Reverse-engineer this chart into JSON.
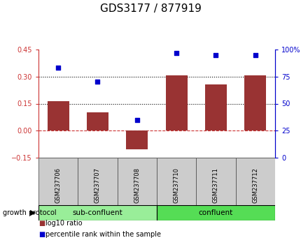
{
  "title": "GDS3177 / 877919",
  "samples": [
    "GSM237706",
    "GSM237707",
    "GSM237708",
    "GSM237710",
    "GSM237711",
    "GSM237712"
  ],
  "log10_ratio": [
    0.165,
    0.1,
    -0.105,
    0.305,
    0.255,
    0.305
  ],
  "percentile_rank": [
    83,
    70,
    35,
    97,
    95,
    95
  ],
  "ylim_left": [
    -0.15,
    0.45
  ],
  "ylim_right": [
    0,
    100
  ],
  "yticks_left": [
    -0.15,
    0,
    0.15,
    0.3,
    0.45
  ],
  "yticks_right": [
    0,
    25,
    50,
    75,
    100
  ],
  "hlines": [
    0.0,
    0.15,
    0.3
  ],
  "hline_styles": [
    "dashed",
    "dotted",
    "dotted"
  ],
  "hline_colors": [
    "#cc3333",
    "#000000",
    "#000000"
  ],
  "bar_color": "#993333",
  "dot_color": "#0000cc",
  "bar_width": 0.55,
  "group_protocol_label": "growth protocol",
  "legend_items": [
    {
      "label": "log10 ratio",
      "color": "#993333"
    },
    {
      "label": "percentile rank within the sample",
      "color": "#0000cc"
    }
  ],
  "left_axis_color": "#cc3333",
  "right_axis_color": "#0000cc",
  "background_label": "#cccccc",
  "sub_confluent_color": "#99ee99",
  "confluent_color": "#55dd55",
  "tick_label_fontsize": 7,
  "title_fontsize": 11
}
